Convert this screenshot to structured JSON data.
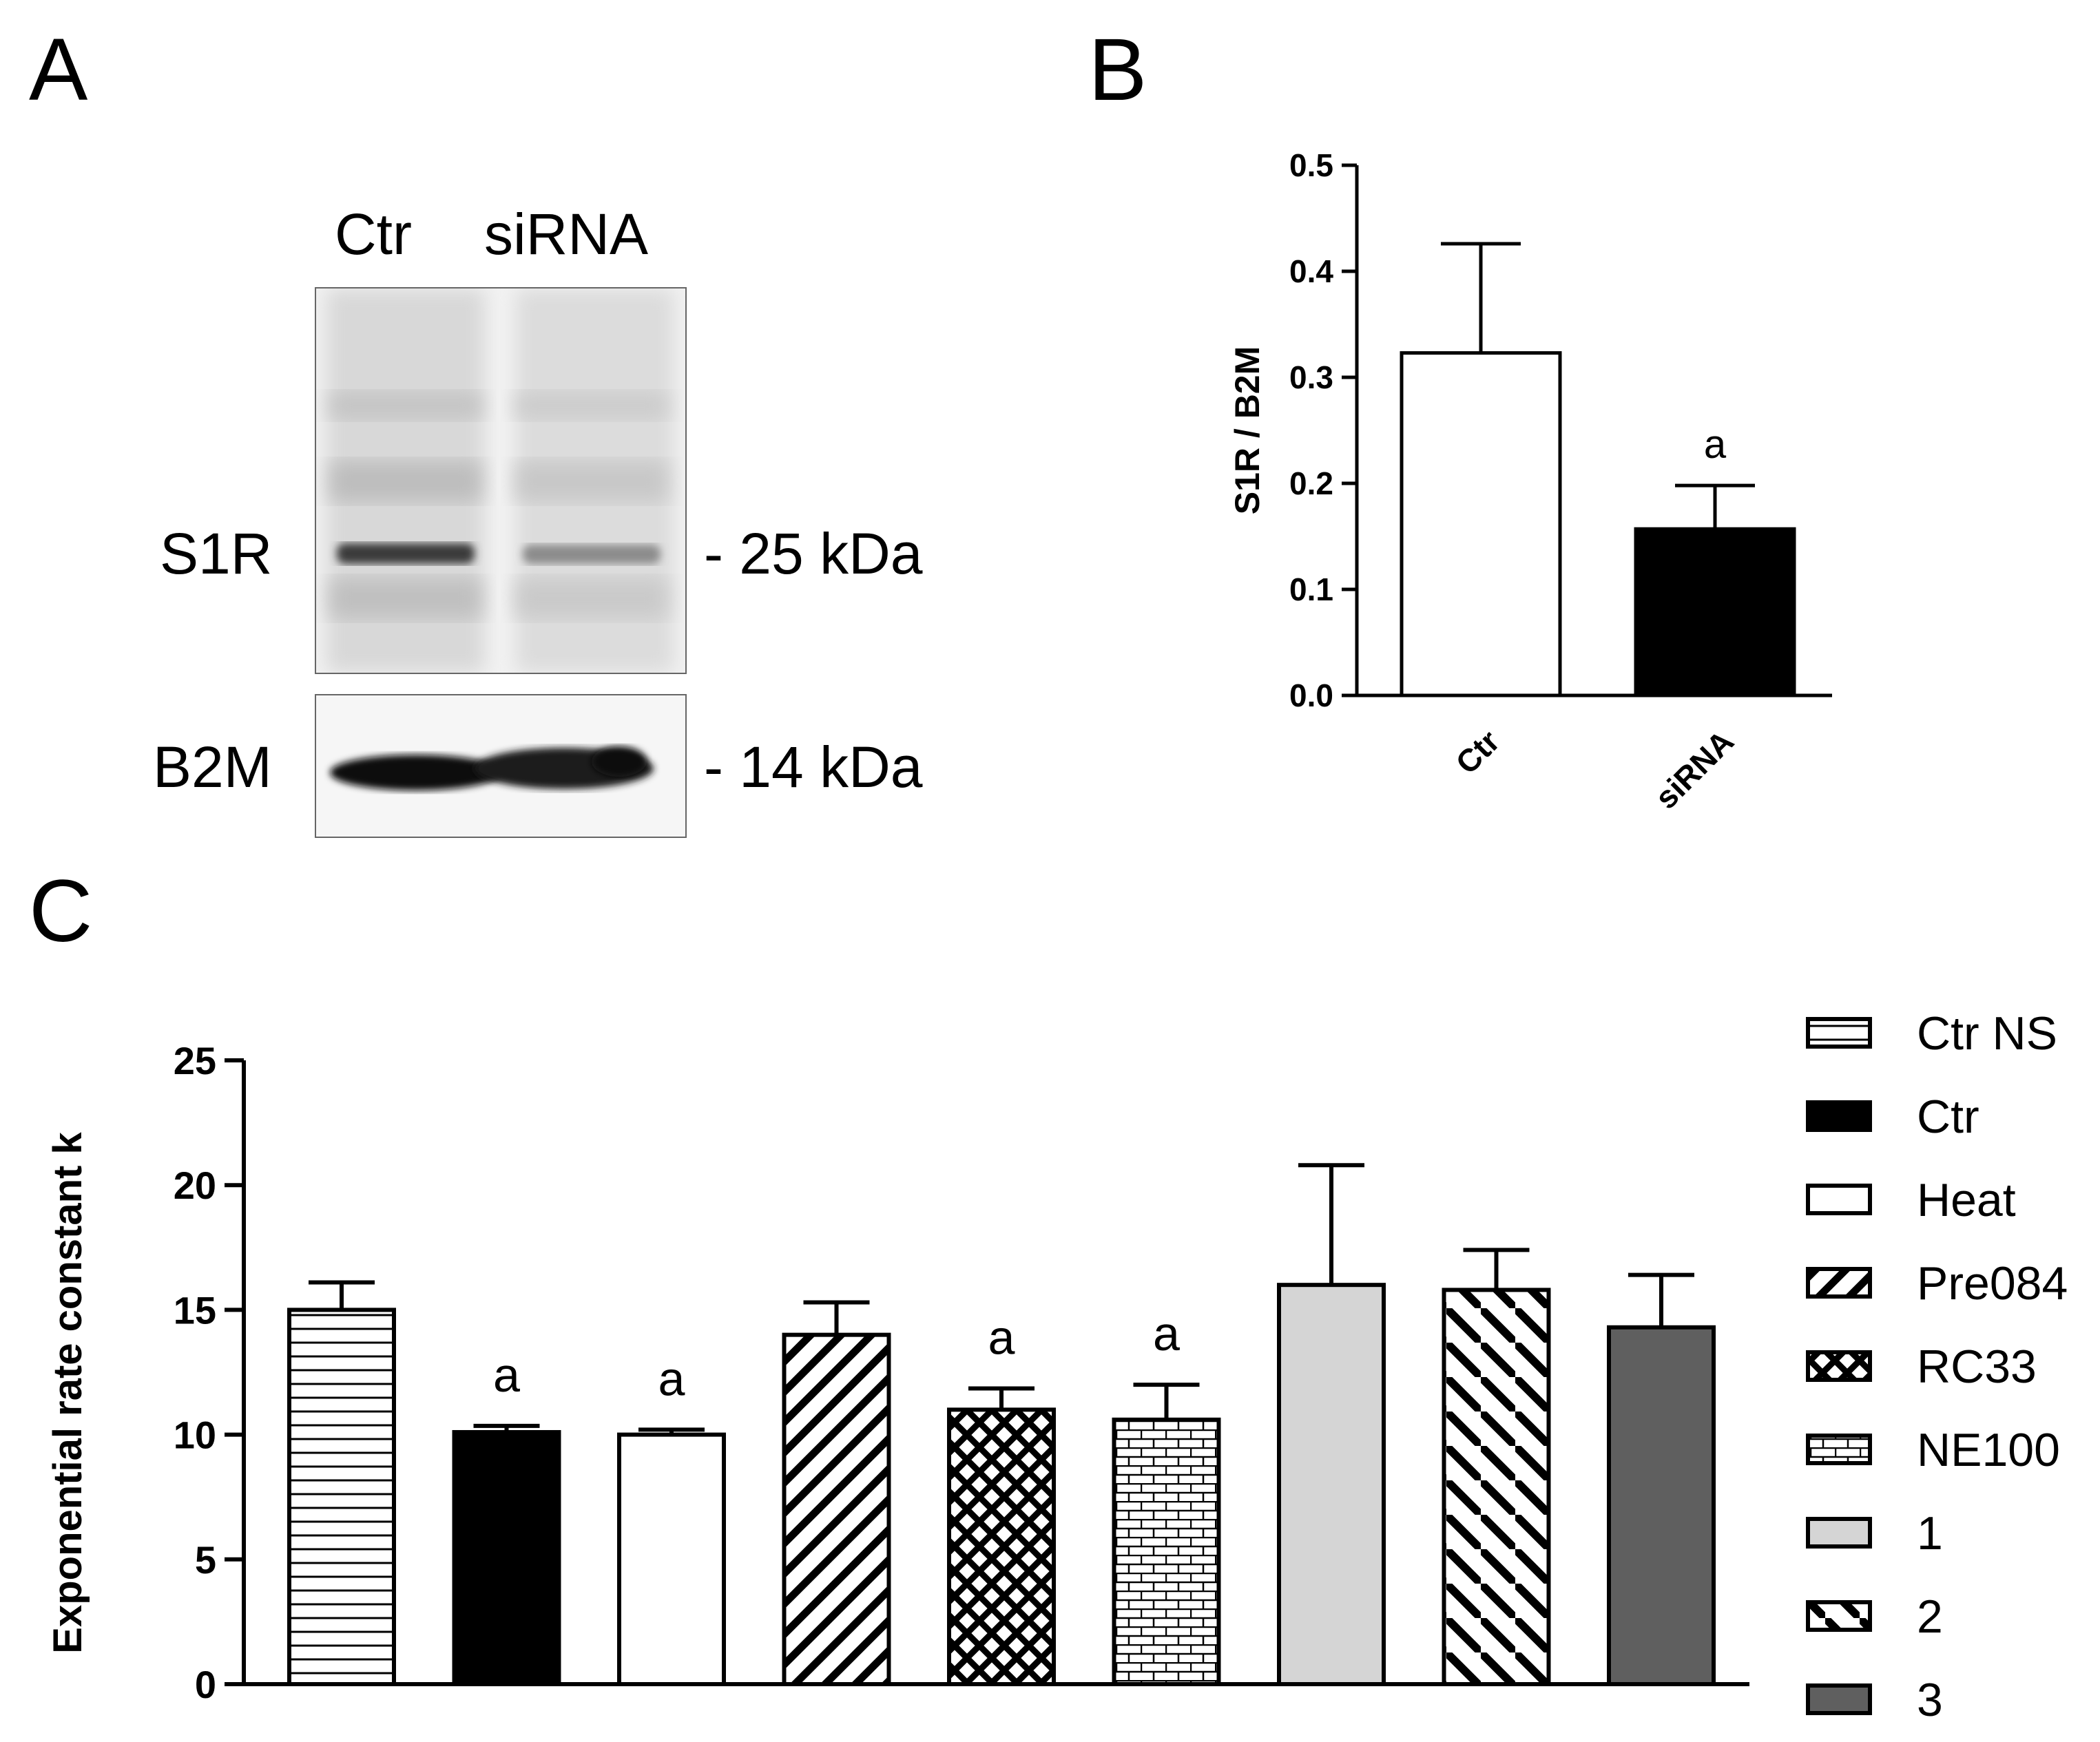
{
  "panels": {
    "a": "A",
    "b": "B",
    "c": "C"
  },
  "western_blot": {
    "lanes": [
      "Ctr",
      "siRNA"
    ],
    "proteins": [
      {
        "name": "S1R",
        "mw": "- 25 kDa"
      },
      {
        "name": "B2M",
        "mw": "- 14 kDa"
      }
    ]
  },
  "chart_data": [
    {
      "type": "bar",
      "categories": [
        "Ctr",
        "siRNA"
      ],
      "values": [
        0.323,
        0.157
      ],
      "errors": [
        0.103,
        0.041
      ],
      "colors": [
        "#ffffff",
        "#000000"
      ],
      "annotations": [
        "",
        "a"
      ],
      "ylabel": "S1R / B2M",
      "ylim": [
        0,
        0.5
      ],
      "yticks": [
        "0.0",
        "0.1",
        "0.2",
        "0.3",
        "0.4",
        "0.5"
      ],
      "grid": false
    },
    {
      "type": "bar",
      "categories": [
        "Ctr NS",
        "Ctr",
        "Heat",
        "Pre084",
        "RC33",
        "NE100",
        "1",
        "2",
        "3"
      ],
      "values": [
        15.0,
        10.1,
        10.0,
        14.0,
        11.0,
        10.6,
        16.0,
        15.8,
        14.3
      ],
      "errors": [
        1.1,
        0.25,
        0.2,
        1.3,
        0.85,
        1.4,
        4.8,
        1.6,
        2.1
      ],
      "patterns": [
        "hlines",
        "solid-black",
        "solid-white",
        "diag-dense",
        "crosshatch",
        "brick",
        "solid-lightgray",
        "diag-sparse",
        "solid-darkgray"
      ],
      "annotations": [
        "",
        "a",
        "a",
        "",
        "a",
        "a",
        "",
        "",
        ""
      ],
      "ylabel": "Exponential rate constant k",
      "ylim": [
        0,
        25
      ],
      "yticks": [
        "0",
        "5",
        "10",
        "15",
        "20",
        "25"
      ],
      "legend": {
        "placement": "right",
        "entries": [
          "Ctr NS",
          "Ctr",
          "Heat",
          "Pre084",
          "RC33",
          "NE100",
          "1",
          "2",
          "3"
        ]
      },
      "grid": false
    }
  ]
}
